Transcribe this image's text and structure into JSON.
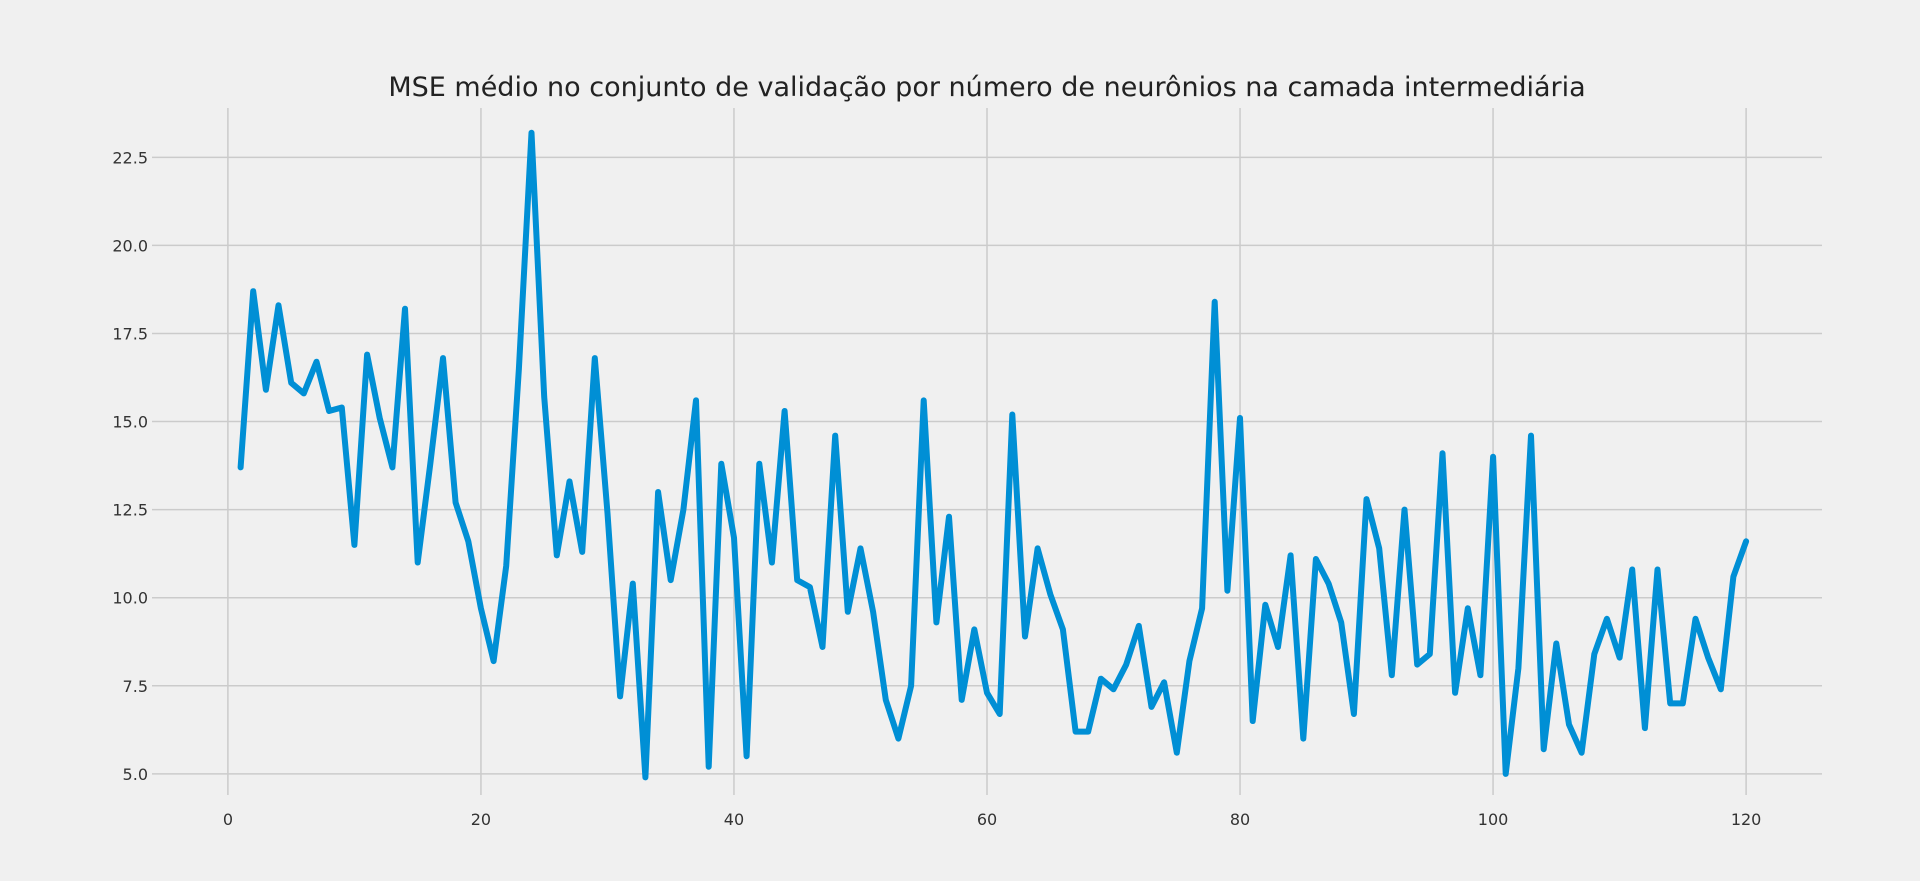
{
  "chart_data": {
    "type": "line",
    "title": "MSE médio no conjunto de validação por número de neurônios na camada intermediária",
    "xlabel": "",
    "ylabel": "",
    "xlim": [
      -6,
      126
    ],
    "ylim": [
      4.4,
      23.9
    ],
    "x_ticks": [
      0,
      20,
      40,
      60,
      80,
      100,
      120
    ],
    "y_ticks": [
      5.0,
      7.5,
      10.0,
      12.5,
      15.0,
      17.5,
      20.0,
      22.5
    ],
    "grid": true,
    "legend": "none",
    "color": "#008fd5",
    "series": [
      {
        "x": [
          1,
          2,
          3,
          4,
          5,
          6,
          7,
          8,
          9,
          10,
          11,
          12,
          13,
          14,
          15,
          16,
          17,
          18,
          19,
          20,
          21,
          22,
          23,
          24,
          25,
          26,
          27,
          28,
          29,
          30,
          31,
          32,
          33,
          34,
          35,
          36,
          37,
          38,
          39,
          40,
          41,
          42,
          43,
          44,
          45,
          46,
          47,
          48,
          49,
          50,
          51,
          52,
          53,
          54,
          55,
          56,
          57,
          58,
          59,
          60,
          61,
          62,
          63,
          64,
          65,
          66,
          67,
          68,
          69,
          70,
          71,
          72,
          73,
          74,
          75,
          76,
          77,
          78,
          79,
          80,
          81,
          82,
          83,
          84,
          85,
          86,
          87,
          88,
          89,
          90,
          91,
          92,
          93,
          94,
          95,
          96,
          97,
          98,
          99,
          100,
          101,
          102,
          103,
          104,
          105,
          106,
          107,
          108,
          109,
          110,
          111,
          112,
          113,
          114,
          115,
          116,
          117,
          118,
          119,
          120
        ],
        "values": [
          13.7,
          18.7,
          15.9,
          18.3,
          16.1,
          15.8,
          16.7,
          15.3,
          15.4,
          11.5,
          16.9,
          15.1,
          13.7,
          18.2,
          11.0,
          13.8,
          16.8,
          12.7,
          11.6,
          9.7,
          8.2,
          10.9,
          16.5,
          23.2,
          15.7,
          11.2,
          13.3,
          11.3,
          16.8,
          12.4,
          7.2,
          10.4,
          4.9,
          13.0,
          10.5,
          12.5,
          15.6,
          5.2,
          13.8,
          11.7,
          5.5,
          13.8,
          11.0,
          15.3,
          10.5,
          10.3,
          8.6,
          14.6,
          9.6,
          11.4,
          9.6,
          7.1,
          6.0,
          7.5,
          15.6,
          9.3,
          12.3,
          7.1,
          9.1,
          7.3,
          6.7,
          15.2,
          8.9,
          11.4,
          10.1,
          9.1,
          6.2,
          6.2,
          7.7,
          7.4,
          8.1,
          9.2,
          6.9,
          7.6,
          5.6,
          8.2,
          9.7,
          18.4,
          10.2,
          15.1,
          6.5,
          9.8,
          8.6,
          11.2,
          6.0,
          11.1,
          10.4,
          9.3,
          6.7,
          12.8,
          11.4,
          7.8,
          12.5,
          8.1,
          8.4,
          14.1,
          7.3,
          9.7,
          7.8,
          14.0,
          5.0,
          8.0,
          14.6,
          5.7,
          8.7,
          6.4,
          5.6,
          8.4,
          9.4,
          8.3,
          10.8,
          6.3,
          10.8,
          7.0,
          7.0,
          9.4,
          8.3,
          7.4,
          10.6,
          11.6
        ]
      }
    ]
  }
}
